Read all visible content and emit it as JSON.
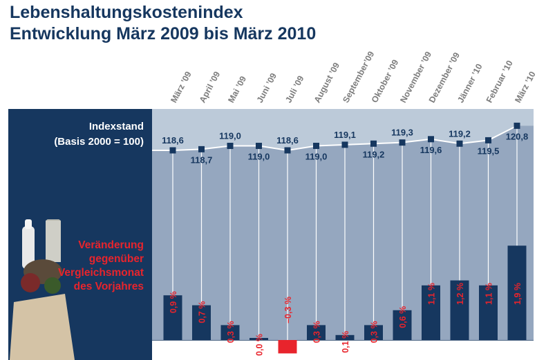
{
  "header": {
    "title_line1": "Lebenshaltungskostenindex",
    "title_line2": "Entwicklung März 2009 bis März 2010"
  },
  "legend": {
    "index_label": "Indexstand",
    "index_basis": "(Basis 2000 = 100)",
    "change_label_1": "Veränderung",
    "change_label_2": "gegenüber",
    "change_label_3": "Vergleichsmonat",
    "change_label_4": "des Vorjahres"
  },
  "colors": {
    "navy": "#16375f",
    "area": "#95a7bf",
    "area_light": "#bccad9",
    "red": "#e8242c"
  },
  "chart_data": {
    "type": "line",
    "categories": [
      "März ’09",
      "April ’09",
      "Mai ’09",
      "Juni ’09",
      "Juli ’09",
      "August ’09",
      "September’09",
      "Oktober ’09",
      "November ’09",
      "Dezember ’09",
      "Jänner ’10",
      "Februar ’10",
      "März ’10"
    ],
    "series": [
      {
        "values": [
          118.6,
          118.7,
          119.0,
          119.0,
          118.6,
          119.0,
          119.1,
          119.2,
          119.3,
          119.6,
          119.2,
          119.5,
          120.8
        ],
        "labels": [
          "118,6",
          "118,7",
          "119,0",
          "119,0",
          "118,6",
          "119,0",
          "119,1",
          "119,2",
          "119,3",
          "119,6",
          "119,2",
          "119,5",
          "120,8"
        ]
      },
      {
        "type": "bar",
        "values": [
          0.9,
          0.7,
          0.3,
          0.0,
          -0.3,
          0.3,
          0.1,
          0.3,
          0.6,
          1.1,
          1.2,
          1.1,
          1.9
        ],
        "labels": [
          "0,9 %",
          "0,7 %",
          "0,3 %",
          "0,0 %",
          "–0,3 %",
          "0,3 %",
          "0,1 %",
          "0,3 %",
          "0,6 %",
          "1,1 %",
          "1,2 %",
          "1,1 %",
          "1,9 %"
        ]
      }
    ],
    "grid": false
  }
}
